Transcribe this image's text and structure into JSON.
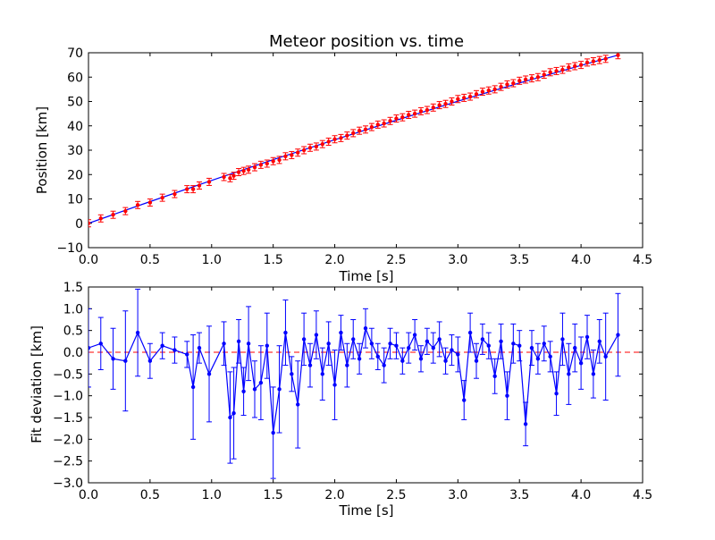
{
  "chart_data": [
    {
      "type": "scatter",
      "title": "Meteor position vs. time",
      "xlabel": "Time [s]",
      "ylabel": "Position [km]",
      "xlim": [
        0.0,
        4.5
      ],
      "ylim": [
        -10,
        70
      ],
      "xticks": [
        "0.0",
        "0.5",
        "1.0",
        "1.5",
        "2.0",
        "2.5",
        "3.0",
        "3.5",
        "4.0",
        "4.5"
      ],
      "yticks": [
        "−10",
        "0",
        "10",
        "20",
        "30",
        "40",
        "50",
        "60",
        "70"
      ],
      "grid": false,
      "colors": {
        "points": "#ff0000",
        "fit": "#0000ff"
      },
      "series": [
        {
          "role": "measured",
          "x": [
            0.0,
            0.1,
            0.2,
            0.3,
            0.4,
            0.5,
            0.6,
            0.7,
            0.8,
            0.85,
            0.9,
            0.98,
            1.1,
            1.15,
            1.18,
            1.22,
            1.26,
            1.3,
            1.35,
            1.4,
            1.45,
            1.5,
            1.55,
            1.6,
            1.65,
            1.7,
            1.75,
            1.8,
            1.85,
            1.9,
            1.95,
            2.0,
            2.05,
            2.1,
            2.15,
            2.2,
            2.25,
            2.3,
            2.35,
            2.4,
            2.45,
            2.5,
            2.55,
            2.6,
            2.65,
            2.7,
            2.75,
            2.8,
            2.85,
            2.9,
            2.95,
            3.0,
            3.05,
            3.1,
            3.15,
            3.2,
            3.25,
            3.3,
            3.35,
            3.4,
            3.45,
            3.5,
            3.55,
            3.6,
            3.65,
            3.7,
            3.75,
            3.8,
            3.85,
            3.9,
            3.95,
            4.0,
            4.05,
            4.1,
            4.15,
            4.2,
            4.3
          ],
          "y": [
            0.0,
            2.0,
            3.5,
            5.0,
            7.5,
            8.5,
            10.5,
            12.0,
            14.0,
            14.0,
            15.5,
            17.0,
            19.0,
            18.5,
            19.5,
            21.0,
            21.5,
            22.0,
            23.0,
            24.0,
            24.5,
            25.5,
            26.0,
            27.5,
            28.0,
            29.0,
            30.0,
            31.0,
            31.5,
            32.5,
            33.5,
            34.5,
            35.0,
            36.0,
            37.0,
            38.0,
            38.5,
            39.5,
            40.5,
            41.0,
            42.0,
            43.0,
            43.5,
            44.5,
            45.0,
            46.0,
            46.5,
            47.5,
            48.5,
            49.0,
            50.0,
            51.0,
            51.5,
            52.0,
            53.0,
            54.0,
            54.5,
            55.0,
            56.0,
            57.0,
            57.5,
            58.5,
            59.0,
            59.5,
            60.0,
            61.0,
            62.0,
            62.5,
            63.0,
            64.0,
            64.5,
            65.0,
            66.0,
            66.5,
            67.0,
            67.5,
            69.0
          ]
        },
        {
          "role": "fit",
          "x": [
            0.0,
            0.5,
            1.0,
            1.5,
            2.0,
            2.5,
            3.0,
            3.5,
            4.0,
            4.3
          ],
          "y": [
            0.0,
            8.9,
            17.6,
            26.1,
            34.3,
            42.3,
            50.1,
            57.6,
            64.8,
            69.0
          ]
        }
      ]
    },
    {
      "type": "line",
      "xlabel": "Time [s]",
      "ylabel": "Fit deviation [km]",
      "xlim": [
        0.0,
        4.5
      ],
      "ylim": [
        -3.0,
        1.5
      ],
      "xticks": [
        "0.0",
        "0.5",
        "1.0",
        "1.5",
        "2.0",
        "2.5",
        "3.0",
        "3.5",
        "4.0",
        "4.5"
      ],
      "yticks": [
        "−3.0",
        "−2.5",
        "−2.0",
        "−1.5",
        "−1.0",
        "−0.5",
        "0.0",
        "0.5",
        "1.0",
        "1.5"
      ],
      "grid": false,
      "reference_line": {
        "y": 0.0,
        "style": "dashed",
        "color": "#ff0000"
      },
      "colors": {
        "series": "#0000ff"
      },
      "x": [
        0.0,
        0.1,
        0.2,
        0.3,
        0.4,
        0.5,
        0.6,
        0.7,
        0.8,
        0.85,
        0.9,
        0.98,
        1.1,
        1.15,
        1.18,
        1.22,
        1.26,
        1.3,
        1.35,
        1.4,
        1.45,
        1.5,
        1.55,
        1.6,
        1.65,
        1.7,
        1.75,
        1.8,
        1.85,
        1.9,
        1.95,
        2.0,
        2.05,
        2.1,
        2.15,
        2.2,
        2.25,
        2.3,
        2.35,
        2.4,
        2.45,
        2.5,
        2.55,
        2.6,
        2.65,
        2.7,
        2.75,
        2.8,
        2.85,
        2.9,
        2.95,
        3.0,
        3.05,
        3.1,
        3.15,
        3.2,
        3.25,
        3.3,
        3.35,
        3.4,
        3.45,
        3.5,
        3.55,
        3.6,
        3.65,
        3.7,
        3.75,
        3.8,
        3.85,
        3.9,
        3.95,
        4.0,
        4.05,
        4.1,
        4.15,
        4.2,
        4.3
      ],
      "values": [
        0.1,
        0.2,
        -0.15,
        -0.2,
        0.45,
        -0.2,
        0.15,
        0.05,
        -0.05,
        -0.8,
        0.1,
        -0.5,
        0.2,
        -1.5,
        -1.4,
        0.25,
        -0.9,
        0.2,
        -0.85,
        -0.7,
        0.15,
        -1.85,
        -0.85,
        0.45,
        -0.5,
        -1.2,
        0.3,
        -0.3,
        0.4,
        -0.5,
        0.2,
        -0.75,
        0.45,
        -0.3,
        0.3,
        -0.15,
        0.55,
        0.2,
        -0.1,
        -0.3,
        0.2,
        0.15,
        -0.2,
        0.1,
        0.4,
        -0.15,
        0.25,
        0.1,
        0.3,
        -0.2,
        0.05,
        -0.05,
        -1.1,
        0.45,
        -0.2,
        0.3,
        0.15,
        -0.55,
        0.25,
        -1.0,
        0.2,
        0.15,
        -1.65,
        0.1,
        -0.15,
        0.2,
        -0.1,
        -0.95,
        0.3,
        -0.5,
        0.1,
        -0.25,
        0.35,
        -0.5,
        0.25,
        -0.1,
        0.4
      ],
      "errors": [
        0.9,
        0.6,
        0.7,
        1.15,
        1.0,
        0.4,
        0.3,
        0.3,
        0.3,
        1.2,
        0.35,
        1.1,
        0.5,
        1.05,
        1.05,
        0.5,
        0.55,
        0.85,
        0.65,
        0.85,
        0.75,
        1.05,
        1.0,
        0.75,
        0.4,
        1.0,
        0.6,
        0.5,
        0.55,
        0.6,
        0.5,
        0.8,
        0.4,
        0.5,
        0.45,
        0.35,
        0.45,
        0.35,
        0.3,
        0.4,
        0.35,
        0.3,
        0.3,
        0.35,
        0.35,
        0.3,
        0.3,
        0.35,
        0.4,
        0.3,
        0.35,
        0.4,
        0.45,
        0.45,
        0.4,
        0.35,
        0.3,
        0.4,
        0.4,
        0.55,
        0.45,
        0.35,
        0.5,
        0.4,
        0.35,
        0.4,
        0.35,
        0.5,
        0.6,
        0.7,
        0.55,
        0.6,
        0.5,
        0.55,
        0.5,
        1.0,
        0.95
      ]
    }
  ]
}
